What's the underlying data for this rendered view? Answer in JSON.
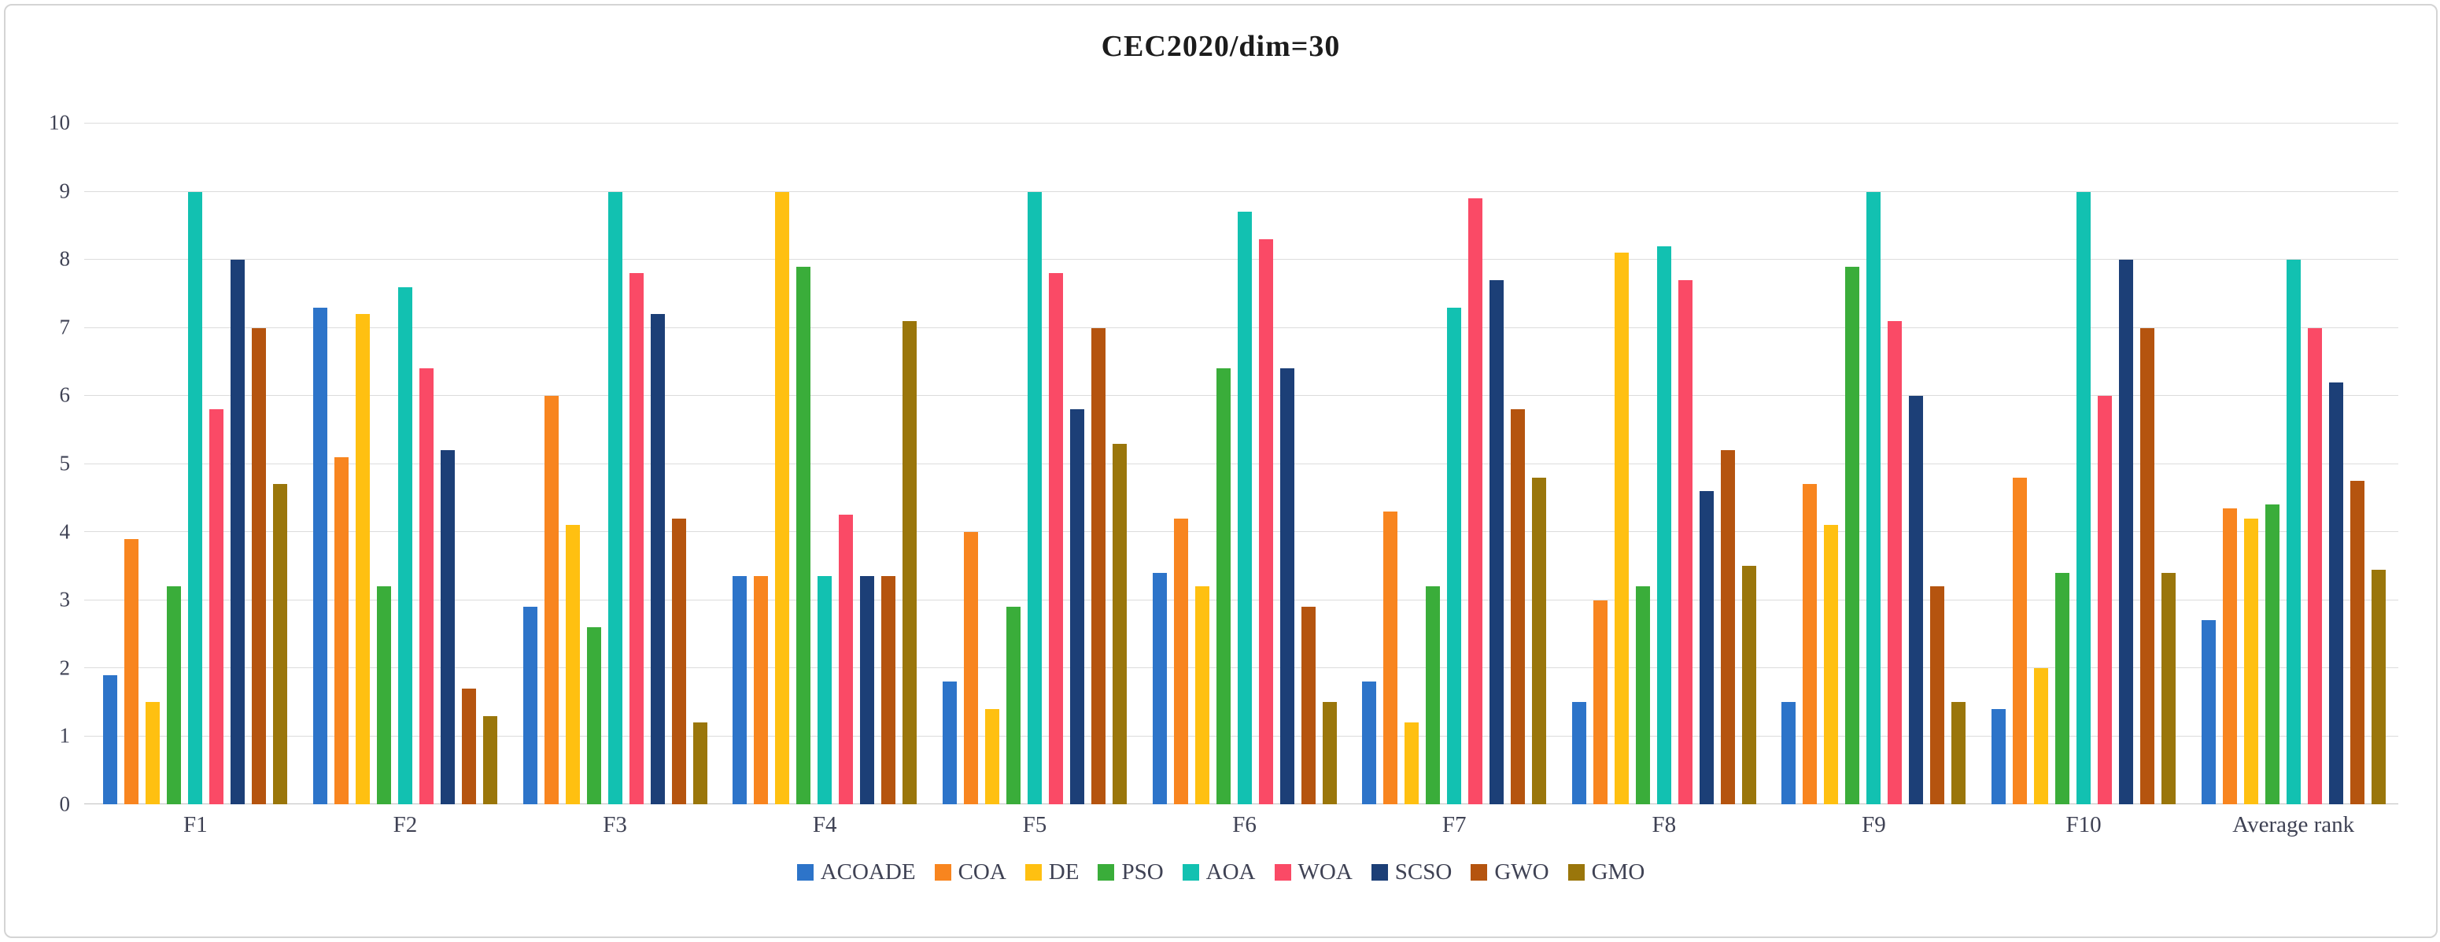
{
  "chart_data": {
    "type": "bar",
    "title": "CEC2020/dim=30",
    "categories": [
      "F1",
      "F2",
      "F3",
      "F4",
      "F5",
      "F6",
      "F7",
      "F8",
      "F9",
      "F10",
      "Average rank"
    ],
    "series": [
      {
        "name": "ACOADE",
        "color": "#2d74c9",
        "values": [
          1.9,
          7.3,
          2.9,
          3.35,
          1.8,
          3.4,
          1.8,
          1.5,
          1.5,
          1.4,
          2.7
        ]
      },
      {
        "name": "COA",
        "color": "#f8851f",
        "values": [
          3.9,
          5.1,
          6.0,
          3.35,
          4.0,
          4.2,
          4.3,
          3.0,
          4.7,
          4.8,
          4.35
        ]
      },
      {
        "name": "DE",
        "color": "#ffc011",
        "values": [
          1.5,
          7.2,
          4.1,
          9.0,
          1.4,
          3.2,
          1.2,
          8.1,
          4.1,
          2.0,
          4.2
        ]
      },
      {
        "name": "PSO",
        "color": "#3aad3a",
        "values": [
          3.2,
          3.2,
          2.6,
          7.9,
          2.9,
          6.4,
          3.2,
          3.2,
          7.9,
          3.4,
          4.4
        ]
      },
      {
        "name": "AOA",
        "color": "#12c1b1",
        "values": [
          9.0,
          7.6,
          9.0,
          3.35,
          9.0,
          8.7,
          7.3,
          8.2,
          9.0,
          9.0,
          8.0
        ]
      },
      {
        "name": "WOA",
        "color": "#fa4a66",
        "values": [
          5.8,
          6.4,
          7.8,
          4.25,
          7.8,
          8.3,
          8.9,
          7.7,
          7.1,
          6.0,
          7.0
        ]
      },
      {
        "name": "SCSO",
        "color": "#1c3f77",
        "values": [
          8.0,
          5.2,
          7.2,
          3.35,
          5.8,
          6.4,
          7.7,
          4.6,
          6.0,
          8.0,
          6.2
        ]
      },
      {
        "name": "GWO",
        "color": "#b5540f",
        "values": [
          7.0,
          1.7,
          4.2,
          3.35,
          7.0,
          2.9,
          5.8,
          5.2,
          3.2,
          7.0,
          4.75
        ]
      },
      {
        "name": "GMO",
        "color": "#9a760b",
        "values": [
          4.7,
          1.3,
          1.2,
          7.1,
          5.3,
          1.5,
          4.8,
          3.5,
          1.5,
          3.4,
          3.45
        ]
      }
    ],
    "ylim": [
      0,
      10
    ],
    "ytick_step": 1,
    "yticks": [
      0,
      1,
      2,
      3,
      4,
      5,
      6,
      7,
      8,
      9,
      10
    ],
    "grid": true,
    "legend_position": "bottom"
  }
}
